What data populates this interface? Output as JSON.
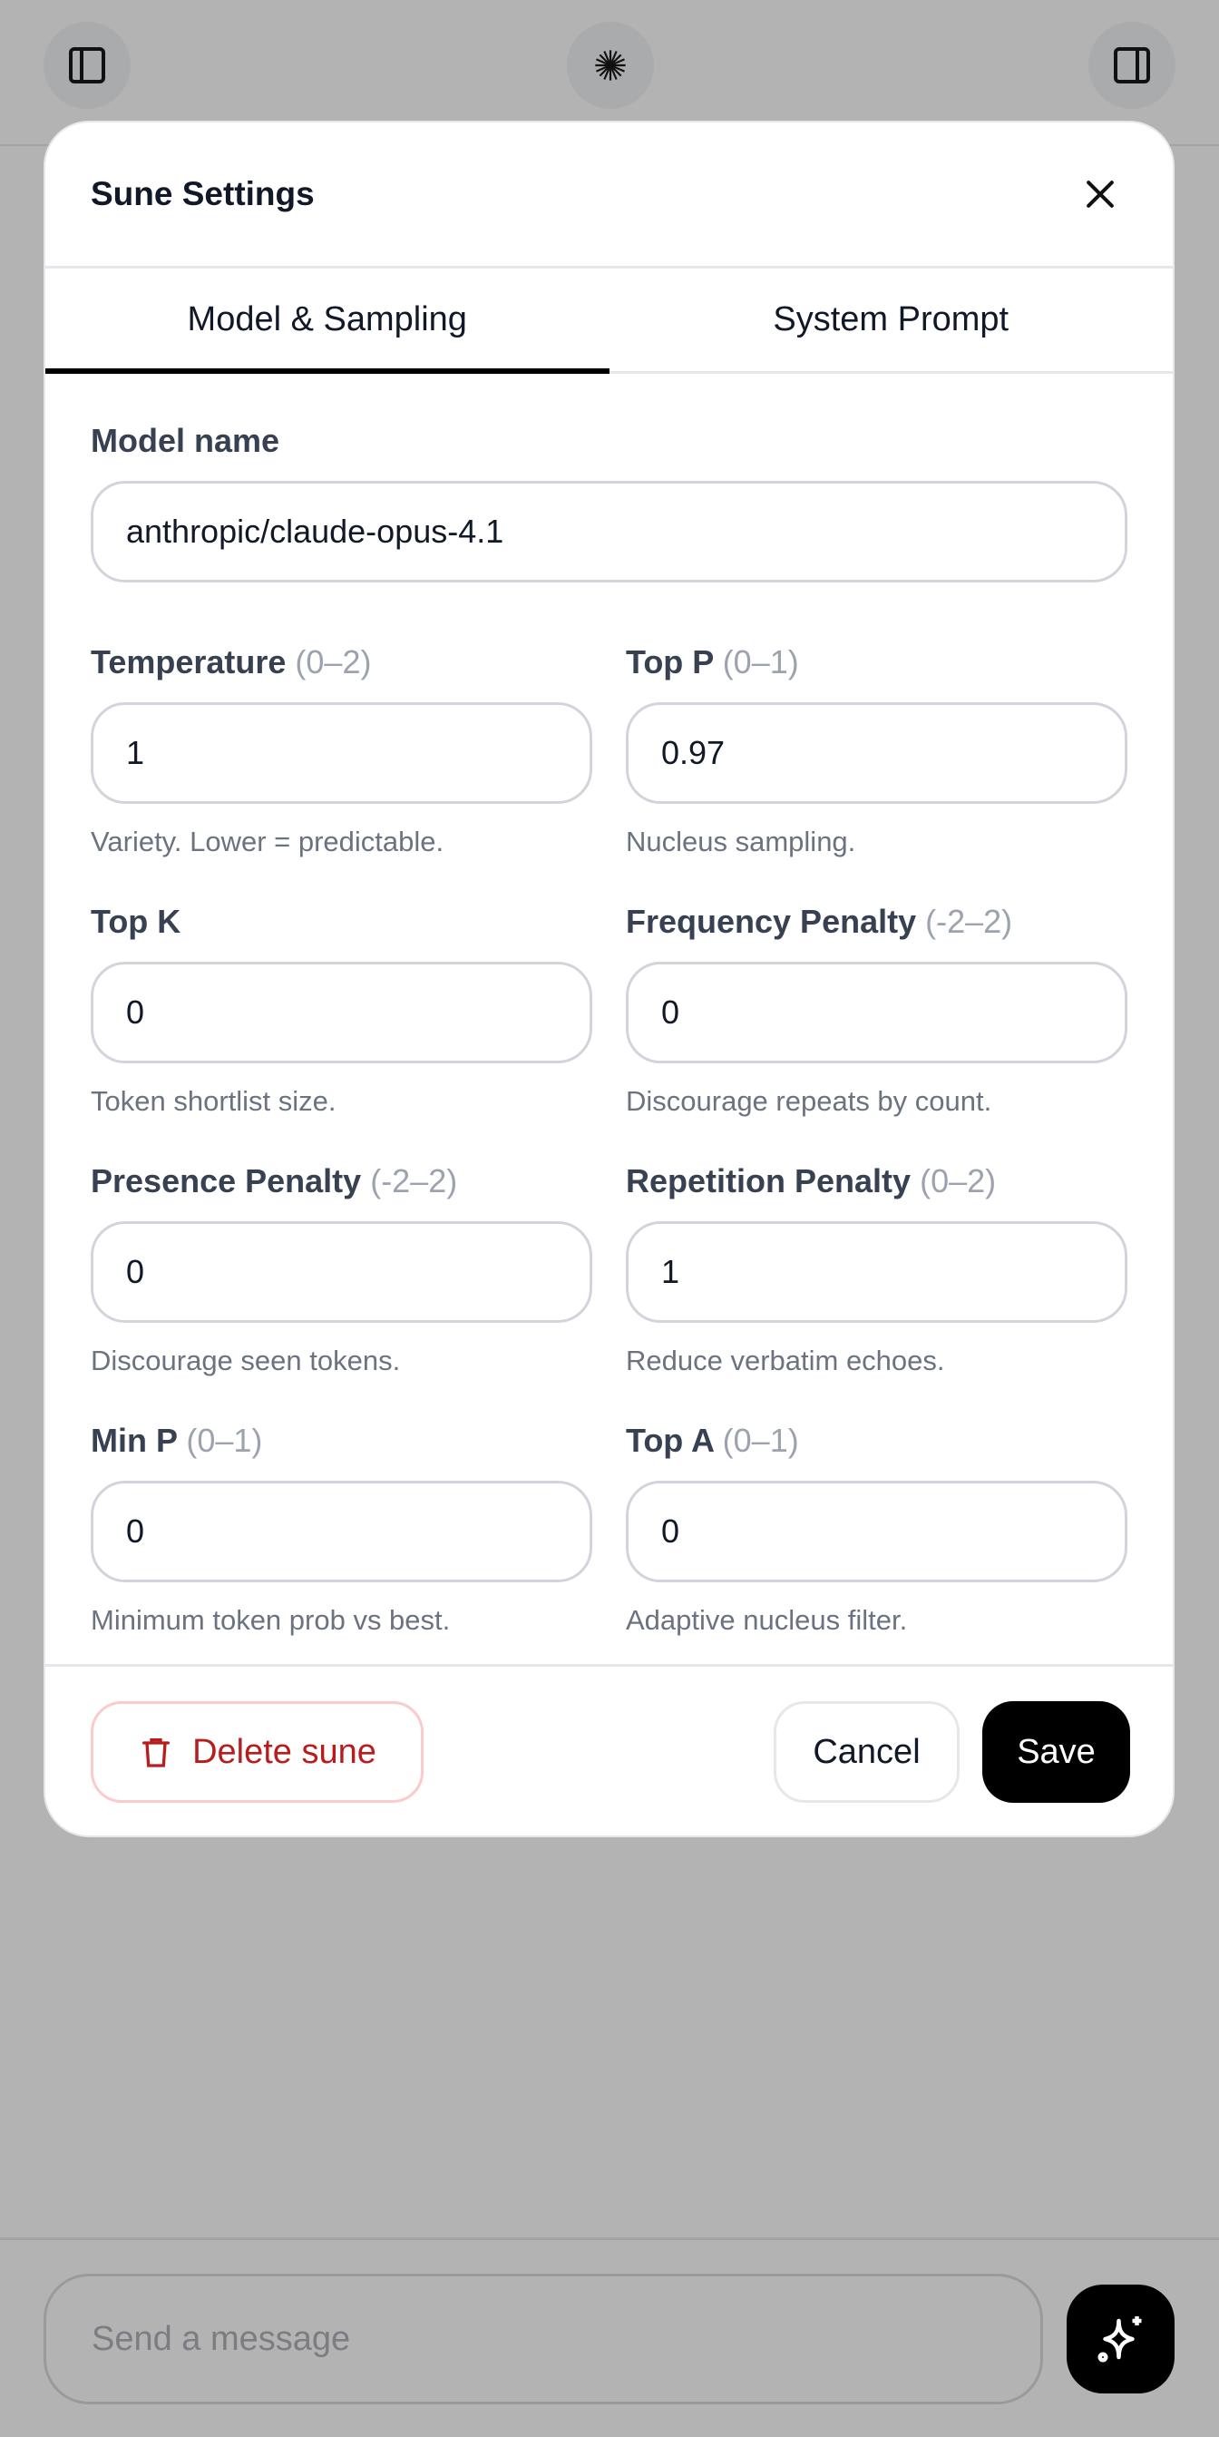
{
  "topbar": {
    "left_icon": "sidebar-left-icon",
    "center_icon": "starburst-logo-icon",
    "right_icon": "sidebar-right-icon"
  },
  "modal": {
    "title": "Sune Settings",
    "close_icon": "close-icon",
    "tabs": [
      {
        "label": "Model & Sampling",
        "active": true
      },
      {
        "label": "System Prompt",
        "active": false
      }
    ],
    "model": {
      "label": "Model name",
      "value": "anthropic/claude-opus-4.1"
    },
    "fields": [
      {
        "label": "Temperature",
        "range": "(0–2)",
        "value": "1",
        "help": "Variety. Lower = predictable."
      },
      {
        "label": "Top P",
        "range": "(0–1)",
        "value": "0.97",
        "help": "Nucleus sampling."
      },
      {
        "label": "Top K",
        "range": "",
        "value": "0",
        "help": "Token shortlist size."
      },
      {
        "label": "Frequency Penalty",
        "range": "(-2–2)",
        "value": "0",
        "help": "Discourage repeats by count."
      },
      {
        "label": "Presence Penalty",
        "range": "(-2–2)",
        "value": "0",
        "help": "Discourage seen tokens."
      },
      {
        "label": "Repetition Penalty",
        "range": "(0–2)",
        "value": "1",
        "help": "Reduce verbatim echoes."
      },
      {
        "label": "Min P",
        "range": "(0–1)",
        "value": "0",
        "help": "Minimum token prob vs best."
      },
      {
        "label": "Top A",
        "range": "(0–1)",
        "value": "0",
        "help": "Adaptive nucleus filter."
      }
    ],
    "footer": {
      "delete_label": "Delete sune",
      "delete_icon": "trash-icon",
      "cancel_label": "Cancel",
      "save_label": "Save"
    }
  },
  "composer": {
    "placeholder": "Send a message",
    "send_icon": "sparkles-icon"
  },
  "colors": {
    "danger": "#b91c1c",
    "primary": "#000000",
    "overlay": "#b3b3b3"
  }
}
